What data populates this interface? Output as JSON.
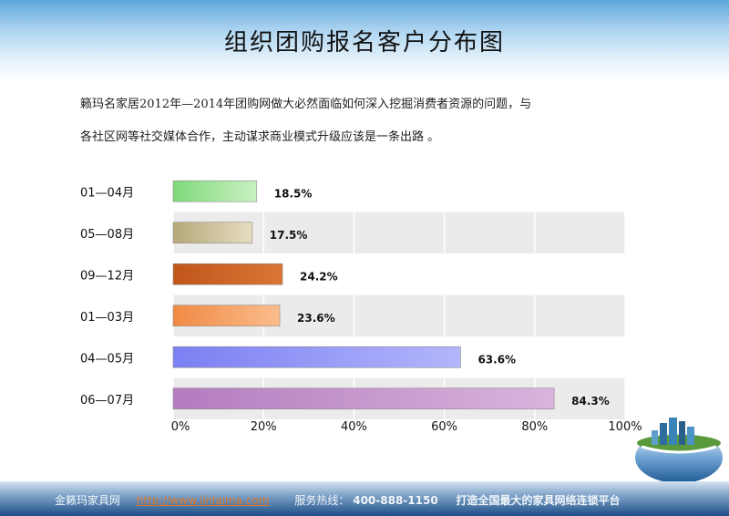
{
  "title": "组织团购报名客户分布图",
  "description": {
    "line1": "籁玛名家居2012年—2014年团购网做大必然面临如何深入挖掘消费者资源的问题，与",
    "line2": "各社区网等社交媒体合作，主动谋求商业模式升级应该是一条出路 。"
  },
  "chart_data": {
    "type": "bar",
    "orientation": "horizontal",
    "categories": [
      "01—04月",
      "05—08月",
      "09—12月",
      "01—03月",
      "04—05月",
      "06—07月"
    ],
    "values": [
      18.5,
      17.5,
      24.2,
      23.6,
      63.6,
      84.3
    ],
    "value_labels": [
      "18.5%",
      "17.5%",
      "24.2%",
      "23.6%",
      "63.6%",
      "84.3%"
    ],
    "xlim": [
      0,
      100
    ],
    "xticks": [
      "0%",
      "20%",
      "40%",
      "60%",
      "80%",
      "100%"
    ],
    "bar_colors": [
      "#7fd87a",
      "#b5a97a",
      "#c0561a",
      "#f08a45",
      "#7b7ff2",
      "#b47bbf"
    ],
    "bar_colors_light": [
      "#c9f1c2",
      "#e6dcc0",
      "#d97535",
      "#fbbd8c",
      "#b3b6fb",
      "#d9b4dc"
    ],
    "grid": true,
    "legend": "none"
  },
  "footer": {
    "brand": "金籁玛家具网",
    "url": "http://www.jinlaima.com",
    "hotline_label": "服务热线：",
    "hotline_number": "400-888-1150",
    "slogan": "打造全国最大的家具网络连锁平台"
  },
  "colors": {
    "footer_dark": "#1d4f87",
    "url_color": "#e07a2e",
    "band_fill": "#ebebeb"
  }
}
